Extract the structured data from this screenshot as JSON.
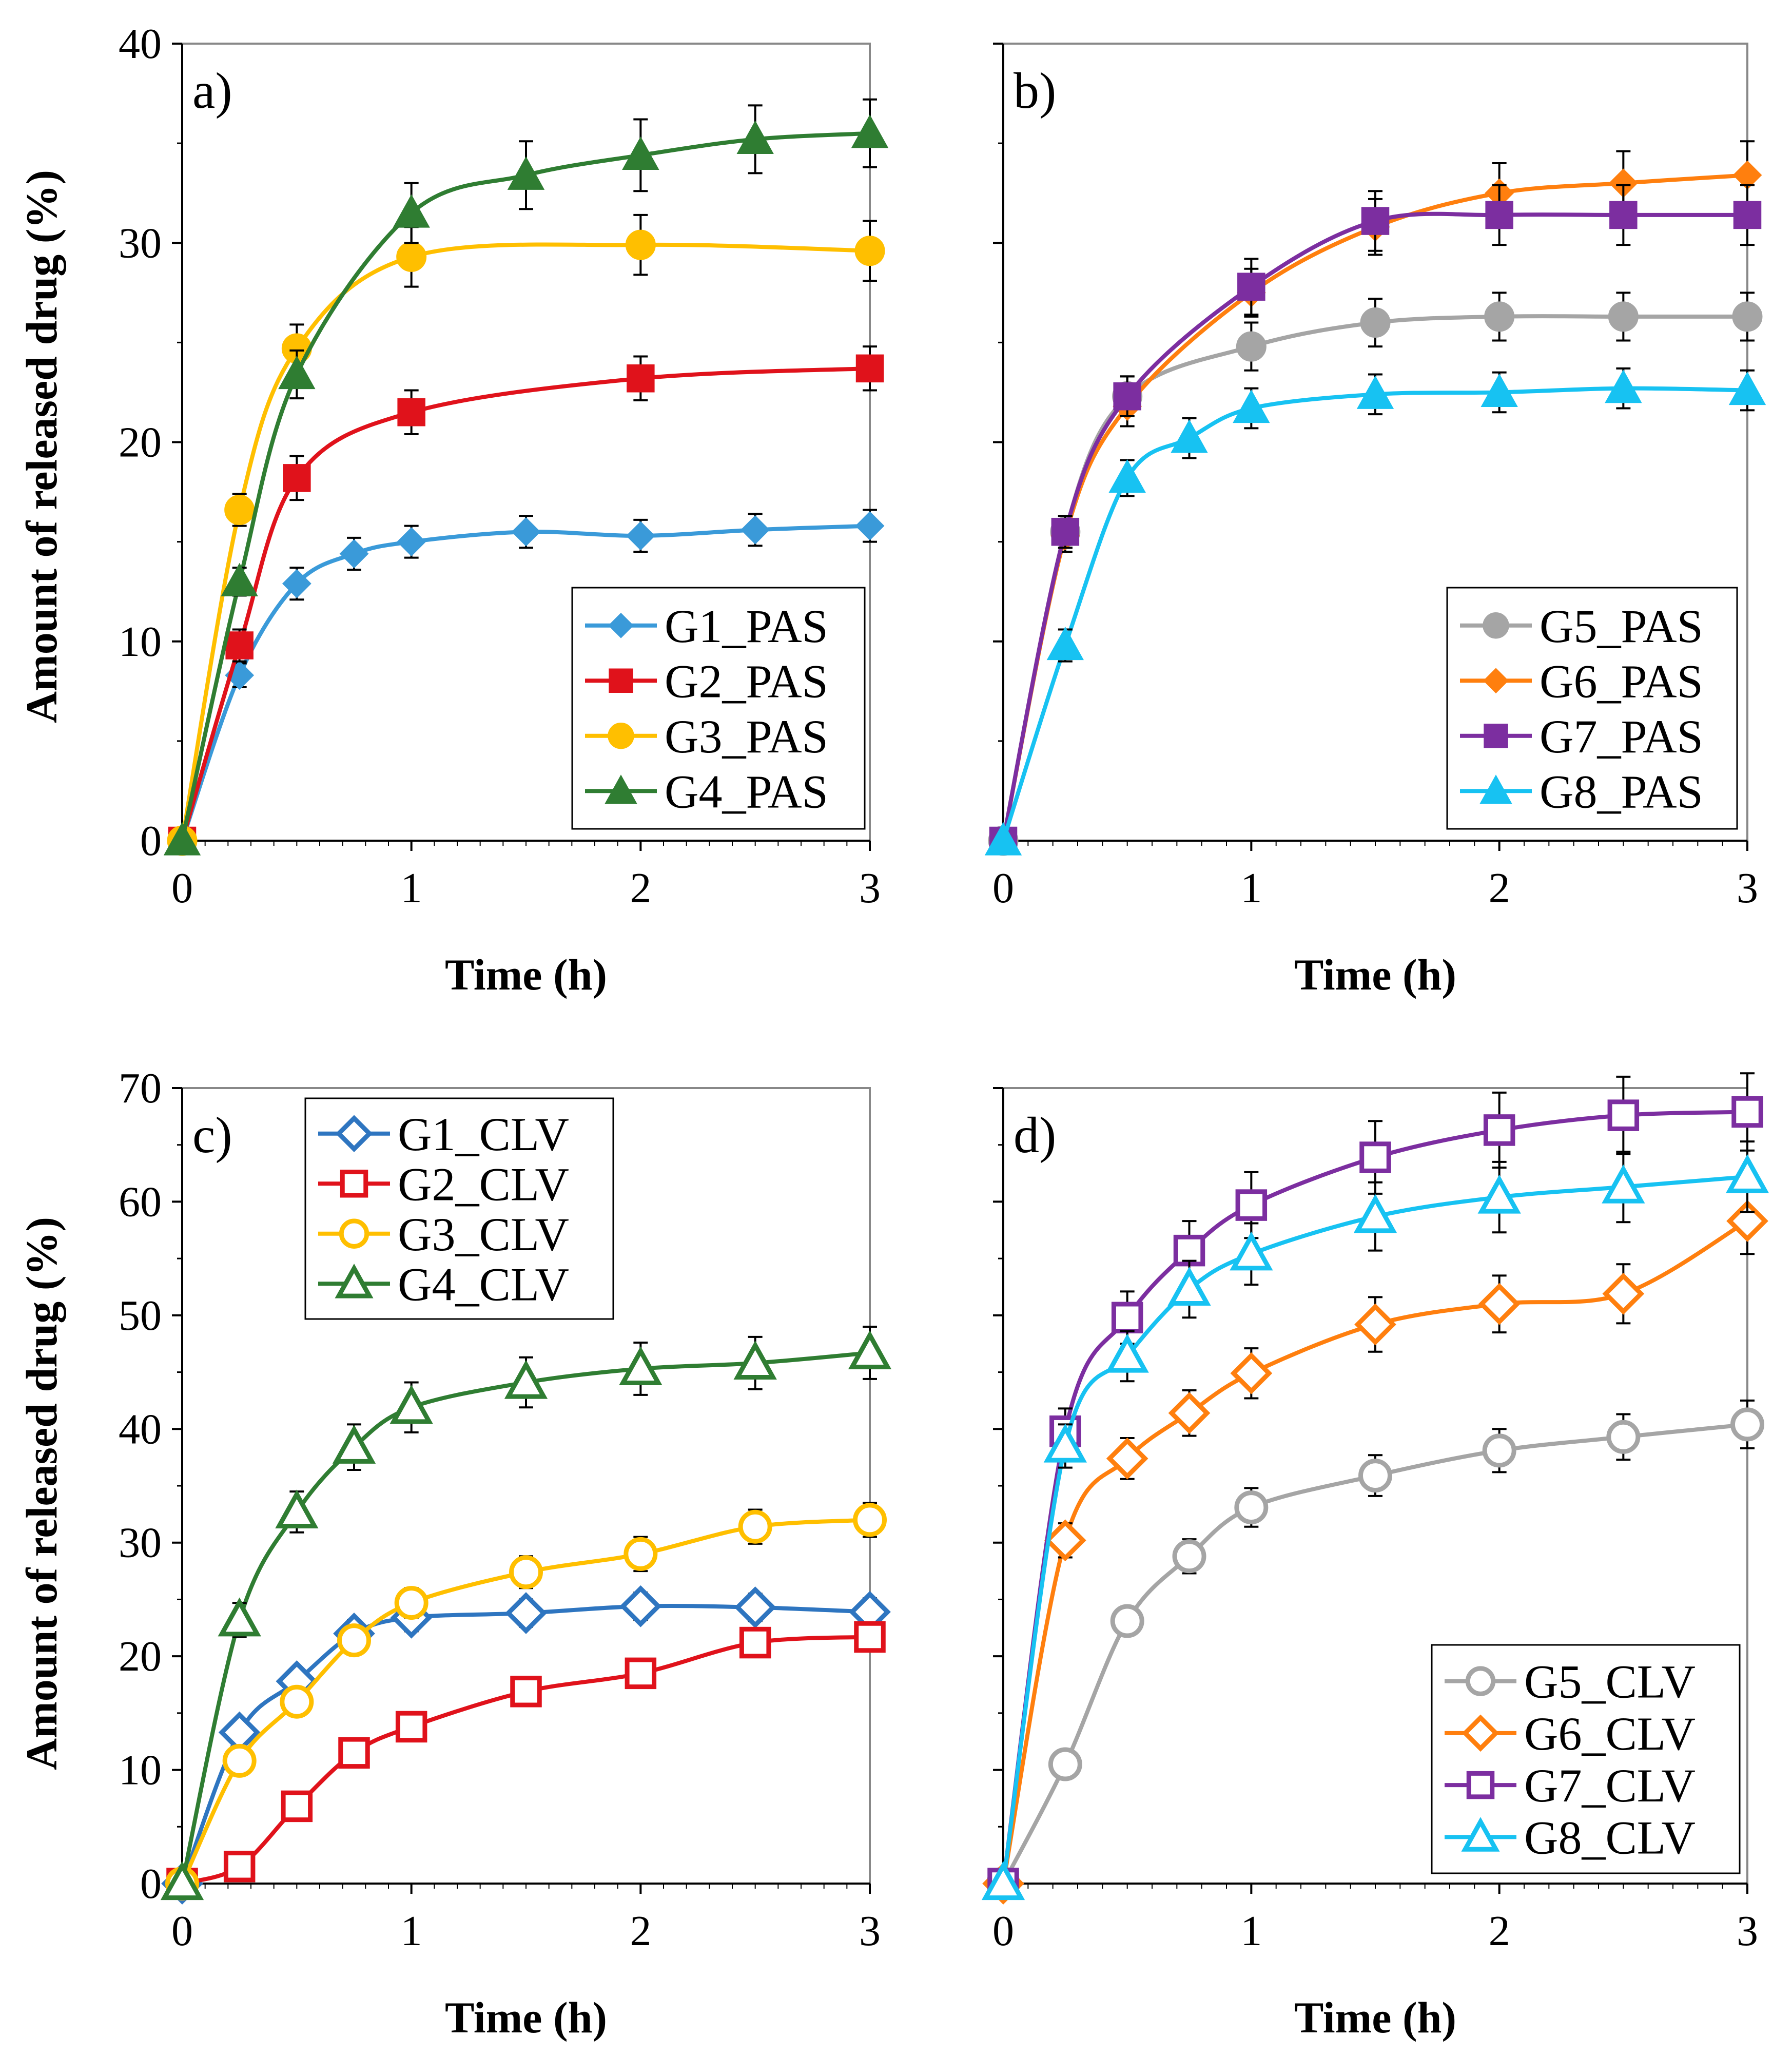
{
  "figure": {
    "ylabel": "Amount of released drug (%)",
    "xlabel": "Time (h)"
  },
  "chart_data": [
    {
      "panel": "a)",
      "type": "line",
      "xlabel": "Time (h)",
      "ylabel": "Amount of released drug (%)",
      "xlim": [
        0,
        3
      ],
      "ylim": [
        0,
        40
      ],
      "xticks": [
        0,
        1,
        2,
        3
      ],
      "yticks": [
        0,
        10,
        20,
        30,
        40
      ],
      "legend_position": "bottom-right",
      "series": [
        {
          "name": "G1_PAS",
          "color": "#3a9ad9",
          "marker": "diamond",
          "filled": true,
          "x": [
            0,
            0.25,
            0.5,
            0.75,
            1,
            1.5,
            2,
            2.5,
            3
          ],
          "y": [
            0,
            8.3,
            12.9,
            14.4,
            15.0,
            15.5,
            15.3,
            15.6,
            15.8
          ],
          "err": [
            0,
            0.6,
            0.8,
            0.8,
            0.8,
            0.8,
            0.8,
            0.8,
            0.8
          ]
        },
        {
          "name": "G2_PAS",
          "color": "#e0121b",
          "marker": "square",
          "filled": true,
          "x": [
            0,
            0.25,
            0.5,
            1,
            2,
            3
          ],
          "y": [
            0,
            9.8,
            18.2,
            21.5,
            23.2,
            23.7
          ],
          "err": [
            0,
            0.8,
            1.1,
            1.1,
            1.1,
            1.1
          ]
        },
        {
          "name": "G3_PAS",
          "color": "#ffbf00",
          "marker": "circle",
          "filled": true,
          "x": [
            0,
            0.25,
            0.5,
            1,
            2,
            3
          ],
          "y": [
            0,
            16.6,
            24.7,
            29.3,
            29.9,
            29.6
          ],
          "err": [
            0,
            0.8,
            1.2,
            1.5,
            1.5,
            1.5
          ]
        },
        {
          "name": "G4_PAS",
          "color": "#2f7d32",
          "marker": "triangle",
          "filled": true,
          "x": [
            0,
            0.25,
            0.5,
            1,
            1.5,
            2,
            2.5,
            3
          ],
          "y": [
            0,
            13.0,
            23.4,
            31.5,
            33.4,
            34.4,
            35.2,
            35.5
          ],
          "err": [
            0,
            0.7,
            1.2,
            1.5,
            1.7,
            1.8,
            1.7,
            1.7
          ]
        }
      ]
    },
    {
      "panel": "b)",
      "type": "line",
      "xlabel": "Time (h)",
      "ylabel": "",
      "xlim": [
        0,
        3
      ],
      "ylim": [
        0,
        40
      ],
      "xticks": [
        0,
        1,
        2,
        3
      ],
      "yticks": [
        0,
        10,
        20,
        30,
        40
      ],
      "legend_position": "bottom-right",
      "series": [
        {
          "name": "G5_PAS",
          "color": "#a5a5a5",
          "marker": "circle",
          "filled": true,
          "x": [
            0,
            0.25,
            0.5,
            1,
            1.5,
            2,
            2.5,
            3
          ],
          "y": [
            0,
            15.5,
            22.3,
            24.8,
            26.0,
            26.3,
            26.3,
            26.3
          ],
          "err": [
            0,
            0.8,
            1.0,
            1.2,
            1.2,
            1.2,
            1.2,
            1.2
          ]
        },
        {
          "name": "G6_PAS",
          "color": "#ff7f0e",
          "marker": "diamond",
          "filled": true,
          "x": [
            0,
            0.25,
            0.5,
            1,
            1.5,
            2,
            2.5,
            3
          ],
          "y": [
            0,
            15.3,
            21.8,
            27.5,
            30.8,
            32.5,
            33.0,
            33.4
          ],
          "err": [
            0,
            0.8,
            1.0,
            1.2,
            1.4,
            1.5,
            1.6,
            1.7
          ]
        },
        {
          "name": "G7_PAS",
          "color": "#7c2ea0",
          "marker": "square",
          "filled": true,
          "x": [
            0,
            0.25,
            0.5,
            1,
            1.5,
            2,
            2.5,
            3
          ],
          "y": [
            0,
            15.5,
            22.3,
            27.8,
            31.1,
            31.4,
            31.4,
            31.4
          ],
          "err": [
            0,
            0.8,
            1.0,
            1.4,
            1.5,
            1.5,
            1.5,
            1.5
          ]
        },
        {
          "name": "G8_PAS",
          "color": "#17c2f2",
          "marker": "triangle",
          "filled": true,
          "x": [
            0,
            0.25,
            0.5,
            0.75,
            1,
            1.5,
            2,
            2.5,
            3
          ],
          "y": [
            0,
            9.8,
            18.2,
            20.2,
            21.7,
            22.4,
            22.5,
            22.7,
            22.6
          ],
          "err": [
            0,
            0.8,
            0.9,
            1.0,
            1.0,
            1.0,
            1.0,
            1.0,
            1.0
          ]
        }
      ]
    },
    {
      "panel": "c)",
      "type": "line",
      "xlabel": "Time (h)",
      "ylabel": "Amount of released drug (%)",
      "xlim": [
        0,
        3
      ],
      "ylim": [
        0,
        70
      ],
      "xticks": [
        0,
        1,
        2,
        3
      ],
      "yticks": [
        0,
        10,
        20,
        30,
        40,
        50,
        60,
        70
      ],
      "legend_position": "top-left",
      "series": [
        {
          "name": "G1_CLV",
          "color": "#2e75c0",
          "marker": "diamond",
          "filled": false,
          "x": [
            0,
            0.25,
            0.5,
            0.75,
            1,
            1.5,
            2,
            2.5,
            3
          ],
          "y": [
            0,
            13.3,
            17.8,
            22.0,
            23.4,
            23.8,
            24.4,
            24.3,
            23.9
          ],
          "err": [
            0,
            0.8,
            1.0,
            1.2,
            1.2,
            1.2,
            1.2,
            1.2,
            1.2
          ]
        },
        {
          "name": "G2_CLV",
          "color": "#e0121b",
          "marker": "square",
          "filled": false,
          "x": [
            0,
            0.25,
            0.5,
            0.75,
            1,
            1.5,
            2,
            2.5,
            3
          ],
          "y": [
            0,
            1.5,
            6.8,
            11.5,
            13.8,
            16.9,
            18.5,
            21.2,
            21.7
          ],
          "err": [
            0,
            0.5,
            0.8,
            1.0,
            1.0,
            1.0,
            1.0,
            1.0,
            1.0
          ]
        },
        {
          "name": "G3_CLV",
          "color": "#ffbf00",
          "marker": "circle",
          "filled": false,
          "x": [
            0,
            0.25,
            0.5,
            0.75,
            1,
            1.5,
            2,
            2.5,
            3
          ],
          "y": [
            0,
            10.8,
            16.0,
            21.4,
            24.7,
            27.4,
            29.0,
            31.4,
            32.0
          ],
          "err": [
            0,
            0.8,
            1.0,
            1.2,
            1.3,
            1.4,
            1.5,
            1.5,
            1.5
          ]
        },
        {
          "name": "G4_CLV",
          "color": "#2f7d32",
          "marker": "triangle",
          "filled": false,
          "x": [
            0,
            0.25,
            0.5,
            0.75,
            1,
            1.5,
            2,
            2.5,
            3
          ],
          "y": [
            0,
            23.2,
            32.7,
            38.4,
            41.9,
            44.1,
            45.3,
            45.8,
            46.7
          ],
          "err": [
            0,
            1.5,
            1.8,
            2.0,
            2.2,
            2.2,
            2.3,
            2.3,
            2.3
          ]
        }
      ]
    },
    {
      "panel": "d)",
      "type": "line",
      "xlabel": "Time (h)",
      "ylabel": "",
      "xlim": [
        0,
        3
      ],
      "ylim": [
        0,
        70
      ],
      "xticks": [
        0,
        1,
        2,
        3
      ],
      "yticks": [
        0,
        10,
        20,
        30,
        40,
        50,
        60,
        70
      ],
      "legend_position": "bottom-right",
      "series": [
        {
          "name": "G5_CLV",
          "color": "#a5a5a5",
          "marker": "circle",
          "filled": false,
          "x": [
            0,
            0.25,
            0.5,
            0.75,
            1,
            1.5,
            2,
            2.5,
            3
          ],
          "y": [
            0,
            10.5,
            23.1,
            28.8,
            33.1,
            35.9,
            38.1,
            39.3,
            40.4
          ],
          "err": [
            0,
            0.8,
            1.2,
            1.5,
            1.7,
            1.8,
            1.9,
            2.0,
            2.1
          ]
        },
        {
          "name": "G6_CLV",
          "color": "#ff7f0e",
          "marker": "diamond",
          "filled": false,
          "x": [
            0,
            0.25,
            0.5,
            0.75,
            1,
            1.5,
            2,
            2.5,
            3
          ],
          "y": [
            0,
            30.2,
            37.4,
            41.4,
            44.9,
            49.2,
            51.0,
            51.9,
            58.3
          ],
          "err": [
            0,
            1.5,
            1.8,
            2.0,
            2.2,
            2.4,
            2.5,
            2.6,
            2.9
          ]
        },
        {
          "name": "G7_CLV",
          "color": "#7c2ea0",
          "marker": "square",
          "filled": false,
          "x": [
            0,
            0.25,
            0.5,
            0.75,
            1,
            1.5,
            2,
            2.5,
            3
          ],
          "y": [
            0,
            39.8,
            49.8,
            55.7,
            59.7,
            63.9,
            66.3,
            67.6,
            67.9
          ],
          "err": [
            0,
            2.0,
            2.3,
            2.6,
            2.9,
            3.2,
            3.3,
            3.4,
            3.4
          ]
        },
        {
          "name": "G8_CLV",
          "color": "#17c2f2",
          "marker": "triangle",
          "filled": false,
          "x": [
            0,
            0.25,
            0.5,
            0.75,
            1,
            1.5,
            2,
            2.5,
            3
          ],
          "y": [
            0,
            38.5,
            46.4,
            52.3,
            55.4,
            58.7,
            60.4,
            61.3,
            62.2
          ],
          "err": [
            0,
            1.9,
            2.2,
            2.5,
            2.7,
            3.0,
            3.1,
            3.1,
            3.1
          ]
        }
      ]
    }
  ]
}
